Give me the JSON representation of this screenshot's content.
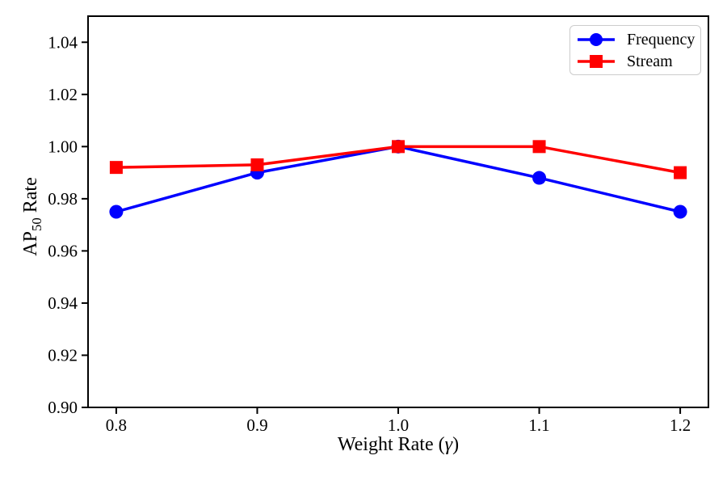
{
  "chart_data": {
    "type": "line",
    "title": "",
    "xlabel": {
      "prefix": "Weight Rate (",
      "symbol": "γ",
      "suffix": ")"
    },
    "ylabel": {
      "prefix": "AP",
      "subscript": "50",
      "suffix": " Rate"
    },
    "x": [
      0.8,
      0.9,
      1.0,
      1.1,
      1.2
    ],
    "xtick_labels": [
      "0.8",
      "0.9",
      "1.0",
      "1.1",
      "1.2"
    ],
    "ytick_values": [
      0.9,
      0.92,
      0.94,
      0.96,
      0.98,
      1.0,
      1.02,
      1.04
    ],
    "ytick_labels": [
      "0.90",
      "0.92",
      "0.94",
      "0.96",
      "0.98",
      "1.00",
      "1.02",
      "1.04"
    ],
    "xlim": [
      0.78,
      1.22
    ],
    "ylim": [
      0.9,
      1.05
    ],
    "grid": false,
    "legend_position": "upper right",
    "series": [
      {
        "name": "Frequency",
        "color": "#0000ff",
        "marker": "circle",
        "values": [
          0.975,
          0.99,
          1.0,
          0.988,
          0.975
        ]
      },
      {
        "name": "Stream",
        "color": "#ff0000",
        "marker": "square",
        "values": [
          0.992,
          0.993,
          1.0,
          1.0,
          0.99
        ]
      }
    ],
    "axis_color": "#000000",
    "legend_border_color": "#cccccc",
    "background": "#ffffff"
  }
}
